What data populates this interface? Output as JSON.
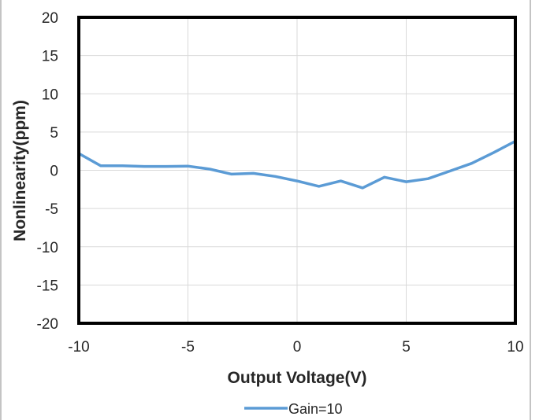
{
  "chart_data": {
    "type": "line",
    "title": "",
    "xlabel": "Output Voltage(V)",
    "ylabel": "Nonlinearity(ppm)",
    "xlim": [
      -10,
      10
    ],
    "ylim": [
      -20,
      20
    ],
    "xticks": [
      -10,
      -5,
      0,
      5,
      10
    ],
    "yticks": [
      20,
      15,
      10,
      5,
      0,
      -5,
      -10,
      -15,
      -20
    ],
    "grid": true,
    "legend_position": "bottom",
    "series": [
      {
        "name": "Gain=10",
        "color": "#5b9bd5",
        "x": [
          -10,
          -9,
          -8,
          -7,
          -6,
          -5,
          -4,
          -3,
          -2,
          -1,
          0,
          1,
          2,
          3,
          4,
          5,
          6,
          7,
          8,
          9,
          10
        ],
        "y": [
          2.2,
          0.6,
          0.6,
          0.5,
          0.5,
          0.55,
          0.15,
          -0.5,
          -0.4,
          -0.8,
          -1.4,
          -2.1,
          -1.4,
          -2.3,
          -0.9,
          -1.5,
          -1.1,
          -0.1,
          0.9,
          2.3,
          3.8
        ]
      }
    ]
  }
}
